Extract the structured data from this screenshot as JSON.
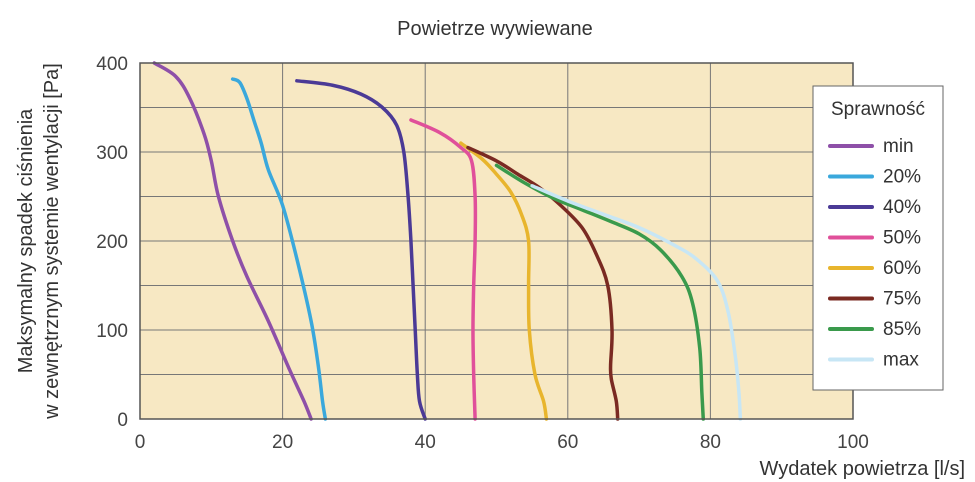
{
  "chart_data": {
    "type": "line",
    "title": "Powietrze wywiewane",
    "xlabel": "Wydatek powietrza [l/s]",
    "ylabel_line1": "Maksymalny spadek ciśnienia",
    "ylabel_line2": "w zewnętrznym systemie wentylacji [Pa]",
    "xlim": [
      0,
      100
    ],
    "ylim": [
      0,
      400
    ],
    "x_ticks": [
      "0",
      "20",
      "40",
      "60",
      "80",
      "100"
    ],
    "y_ticks": [
      "0",
      "100",
      "200",
      "300",
      "400"
    ],
    "grid": true,
    "background_color": "#f7e8c3",
    "legend": {
      "title": "Sprawność",
      "position": "right"
    },
    "series": [
      {
        "name": "min",
        "color": "#8e50a8",
        "points": [
          [
            2,
            400
          ],
          [
            5,
            385
          ],
          [
            7,
            360
          ],
          [
            9,
            320
          ],
          [
            10,
            290
          ],
          [
            11,
            250
          ],
          [
            13,
            200
          ],
          [
            15,
            160
          ],
          [
            18,
            110
          ],
          [
            21,
            55
          ],
          [
            23,
            20
          ],
          [
            24,
            0
          ]
        ]
      },
      {
        "name": "20%",
        "color": "#3aa8dc",
        "points": [
          [
            13,
            382
          ],
          [
            14,
            378
          ],
          [
            15,
            360
          ],
          [
            16,
            335
          ],
          [
            17,
            310
          ],
          [
            18,
            280
          ],
          [
            20,
            240
          ],
          [
            22,
            180
          ],
          [
            24,
            110
          ],
          [
            25,
            60
          ],
          [
            25.6,
            20
          ],
          [
            26,
            0
          ]
        ]
      },
      {
        "name": "40%",
        "color": "#4b3a96",
        "points": [
          [
            22,
            380
          ],
          [
            27,
            375
          ],
          [
            31,
            365
          ],
          [
            34,
            350
          ],
          [
            36,
            330
          ],
          [
            37,
            300
          ],
          [
            37.6,
            250
          ],
          [
            38,
            200
          ],
          [
            38.3,
            150
          ],
          [
            38.6,
            100
          ],
          [
            38.9,
            50
          ],
          [
            39.2,
            20
          ],
          [
            40,
            0
          ]
        ]
      },
      {
        "name": "50%",
        "color": "#e0509a",
        "points": [
          [
            38,
            336
          ],
          [
            42,
            322
          ],
          [
            45,
            305
          ],
          [
            46.5,
            290
          ],
          [
            47,
            250
          ],
          [
            47,
            200
          ],
          [
            46.8,
            150
          ],
          [
            46.7,
            100
          ],
          [
            46.8,
            50
          ],
          [
            47,
            0
          ]
        ]
      },
      {
        "name": "60%",
        "color": "#e8b52d",
        "points": [
          [
            45,
            310
          ],
          [
            48,
            292
          ],
          [
            50,
            275
          ],
          [
            52,
            255
          ],
          [
            53.5,
            230
          ],
          [
            54.5,
            200
          ],
          [
            54.5,
            150
          ],
          [
            54.6,
            100
          ],
          [
            55.4,
            50
          ],
          [
            56.6,
            20
          ],
          [
            57,
            0
          ]
        ]
      },
      {
        "name": "75%",
        "color": "#7a2a22",
        "points": [
          [
            46,
            305
          ],
          [
            50,
            290
          ],
          [
            53,
            275
          ],
          [
            56,
            260
          ],
          [
            59,
            240
          ],
          [
            62,
            215
          ],
          [
            64,
            185
          ],
          [
            65.6,
            150
          ],
          [
            66.2,
            100
          ],
          [
            66,
            60
          ],
          [
            66.1,
            45
          ],
          [
            66.8,
            20
          ],
          [
            67,
            0
          ]
        ]
      },
      {
        "name": "85%",
        "color": "#3a9a4c",
        "points": [
          [
            50,
            285
          ],
          [
            54,
            265
          ],
          [
            58,
            248
          ],
          [
            62,
            235
          ],
          [
            66,
            222
          ],
          [
            70,
            208
          ],
          [
            73,
            190
          ],
          [
            76,
            160
          ],
          [
            77.5,
            130
          ],
          [
            78.5,
            80
          ],
          [
            78.8,
            30
          ],
          [
            79,
            0
          ]
        ]
      },
      {
        "name": "max",
        "color": "#c7e6f5",
        "points": [
          [
            55,
            262
          ],
          [
            60,
            245
          ],
          [
            65,
            230
          ],
          [
            70,
            215
          ],
          [
            75,
            195
          ],
          [
            78,
            180
          ],
          [
            81,
            155
          ],
          [
            82.5,
            120
          ],
          [
            83.5,
            70
          ],
          [
            84,
            30
          ],
          [
            84.2,
            0
          ]
        ]
      }
    ]
  }
}
